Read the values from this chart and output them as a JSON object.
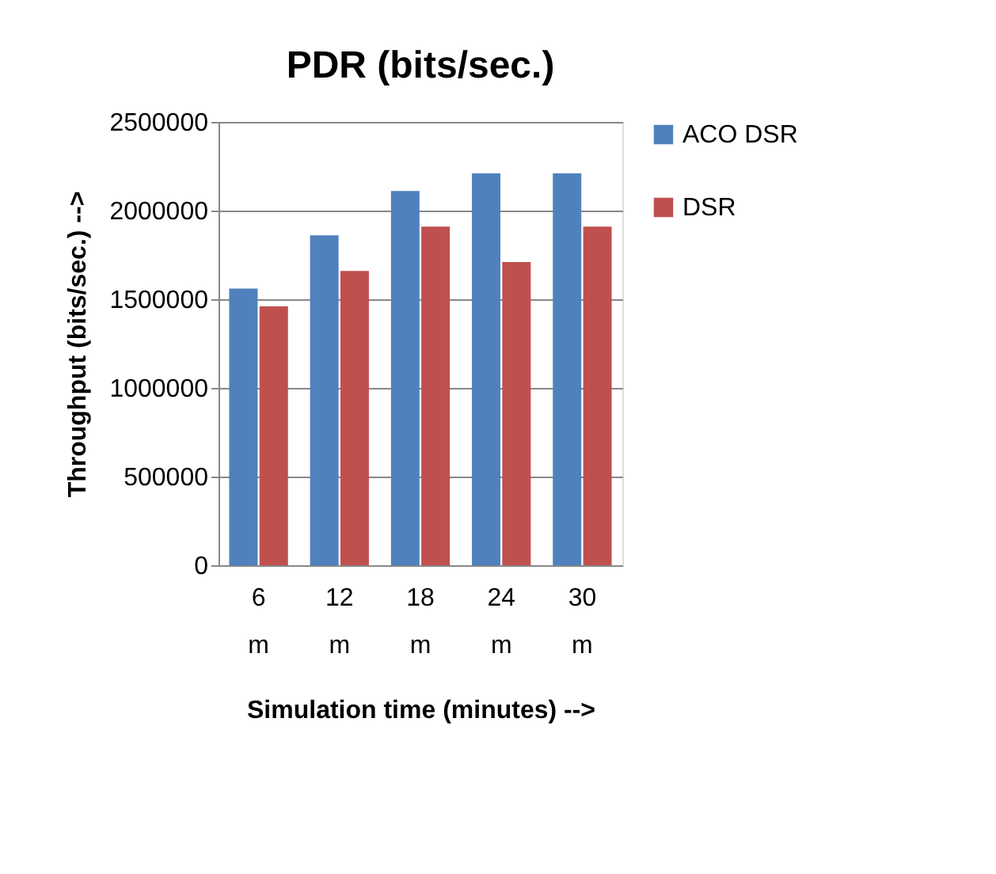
{
  "chart_data": {
    "type": "bar",
    "title": "PDR (bits/sec.)",
    "xlabel": "Simulation time (minutes) -->",
    "ylabel": "Throughput (bits/sec.) -->",
    "categories": [
      "6 m",
      "12 m",
      "18 m",
      "24 m",
      "30 m"
    ],
    "series": [
      {
        "name": "ACO DSR",
        "color": "#4f81bd",
        "values": [
          1560000,
          1860000,
          2110000,
          2210000,
          2210000
        ]
      },
      {
        "name": "DSR",
        "color": "#c0504d",
        "values": [
          1460000,
          1660000,
          1910000,
          1710000,
          1910000
        ]
      }
    ],
    "ylim": [
      0,
      2500000
    ],
    "yticks": [
      0,
      500000,
      1000000,
      1500000,
      2000000,
      2500000
    ],
    "grid": "y",
    "legend": "right"
  }
}
